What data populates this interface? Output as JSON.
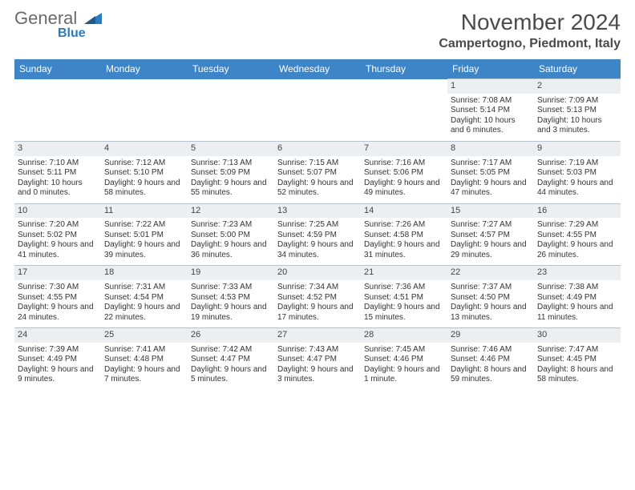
{
  "brand": {
    "name": "General",
    "sub": "Blue",
    "logo_color": "#2b7bbf",
    "text_color": "#6a6a6a"
  },
  "title": "November 2024",
  "location": "Campertogno, Piedmont, Italy",
  "colors": {
    "header_bg": "#3d85c6",
    "header_fg": "#ffffff",
    "daynum_bg": "#eceff1",
    "border": "#b8c2c9",
    "text": "#333333"
  },
  "days_of_week": [
    "Sunday",
    "Monday",
    "Tuesday",
    "Wednesday",
    "Thursday",
    "Friday",
    "Saturday"
  ],
  "weeks": [
    [
      null,
      null,
      null,
      null,
      null,
      {
        "n": "1",
        "sunrise": "7:08 AM",
        "sunset": "5:14 PM",
        "daylight": "10 hours and 6 minutes."
      },
      {
        "n": "2",
        "sunrise": "7:09 AM",
        "sunset": "5:13 PM",
        "daylight": "10 hours and 3 minutes."
      }
    ],
    [
      {
        "n": "3",
        "sunrise": "7:10 AM",
        "sunset": "5:11 PM",
        "daylight": "10 hours and 0 minutes."
      },
      {
        "n": "4",
        "sunrise": "7:12 AM",
        "sunset": "5:10 PM",
        "daylight": "9 hours and 58 minutes."
      },
      {
        "n": "5",
        "sunrise": "7:13 AM",
        "sunset": "5:09 PM",
        "daylight": "9 hours and 55 minutes."
      },
      {
        "n": "6",
        "sunrise": "7:15 AM",
        "sunset": "5:07 PM",
        "daylight": "9 hours and 52 minutes."
      },
      {
        "n": "7",
        "sunrise": "7:16 AM",
        "sunset": "5:06 PM",
        "daylight": "9 hours and 49 minutes."
      },
      {
        "n": "8",
        "sunrise": "7:17 AM",
        "sunset": "5:05 PM",
        "daylight": "9 hours and 47 minutes."
      },
      {
        "n": "9",
        "sunrise": "7:19 AM",
        "sunset": "5:03 PM",
        "daylight": "9 hours and 44 minutes."
      }
    ],
    [
      {
        "n": "10",
        "sunrise": "7:20 AM",
        "sunset": "5:02 PM",
        "daylight": "9 hours and 41 minutes."
      },
      {
        "n": "11",
        "sunrise": "7:22 AM",
        "sunset": "5:01 PM",
        "daylight": "9 hours and 39 minutes."
      },
      {
        "n": "12",
        "sunrise": "7:23 AM",
        "sunset": "5:00 PM",
        "daylight": "9 hours and 36 minutes."
      },
      {
        "n": "13",
        "sunrise": "7:25 AM",
        "sunset": "4:59 PM",
        "daylight": "9 hours and 34 minutes."
      },
      {
        "n": "14",
        "sunrise": "7:26 AM",
        "sunset": "4:58 PM",
        "daylight": "9 hours and 31 minutes."
      },
      {
        "n": "15",
        "sunrise": "7:27 AM",
        "sunset": "4:57 PM",
        "daylight": "9 hours and 29 minutes."
      },
      {
        "n": "16",
        "sunrise": "7:29 AM",
        "sunset": "4:55 PM",
        "daylight": "9 hours and 26 minutes."
      }
    ],
    [
      {
        "n": "17",
        "sunrise": "7:30 AM",
        "sunset": "4:55 PM",
        "daylight": "9 hours and 24 minutes."
      },
      {
        "n": "18",
        "sunrise": "7:31 AM",
        "sunset": "4:54 PM",
        "daylight": "9 hours and 22 minutes."
      },
      {
        "n": "19",
        "sunrise": "7:33 AM",
        "sunset": "4:53 PM",
        "daylight": "9 hours and 19 minutes."
      },
      {
        "n": "20",
        "sunrise": "7:34 AM",
        "sunset": "4:52 PM",
        "daylight": "9 hours and 17 minutes."
      },
      {
        "n": "21",
        "sunrise": "7:36 AM",
        "sunset": "4:51 PM",
        "daylight": "9 hours and 15 minutes."
      },
      {
        "n": "22",
        "sunrise": "7:37 AM",
        "sunset": "4:50 PM",
        "daylight": "9 hours and 13 minutes."
      },
      {
        "n": "23",
        "sunrise": "7:38 AM",
        "sunset": "4:49 PM",
        "daylight": "9 hours and 11 minutes."
      }
    ],
    [
      {
        "n": "24",
        "sunrise": "7:39 AM",
        "sunset": "4:49 PM",
        "daylight": "9 hours and 9 minutes."
      },
      {
        "n": "25",
        "sunrise": "7:41 AM",
        "sunset": "4:48 PM",
        "daylight": "9 hours and 7 minutes."
      },
      {
        "n": "26",
        "sunrise": "7:42 AM",
        "sunset": "4:47 PM",
        "daylight": "9 hours and 5 minutes."
      },
      {
        "n": "27",
        "sunrise": "7:43 AM",
        "sunset": "4:47 PM",
        "daylight": "9 hours and 3 minutes."
      },
      {
        "n": "28",
        "sunrise": "7:45 AM",
        "sunset": "4:46 PM",
        "daylight": "9 hours and 1 minute."
      },
      {
        "n": "29",
        "sunrise": "7:46 AM",
        "sunset": "4:46 PM",
        "daylight": "8 hours and 59 minutes."
      },
      {
        "n": "30",
        "sunrise": "7:47 AM",
        "sunset": "4:45 PM",
        "daylight": "8 hours and 58 minutes."
      }
    ]
  ],
  "labels": {
    "sunrise": "Sunrise:",
    "sunset": "Sunset:",
    "daylight": "Daylight:"
  }
}
